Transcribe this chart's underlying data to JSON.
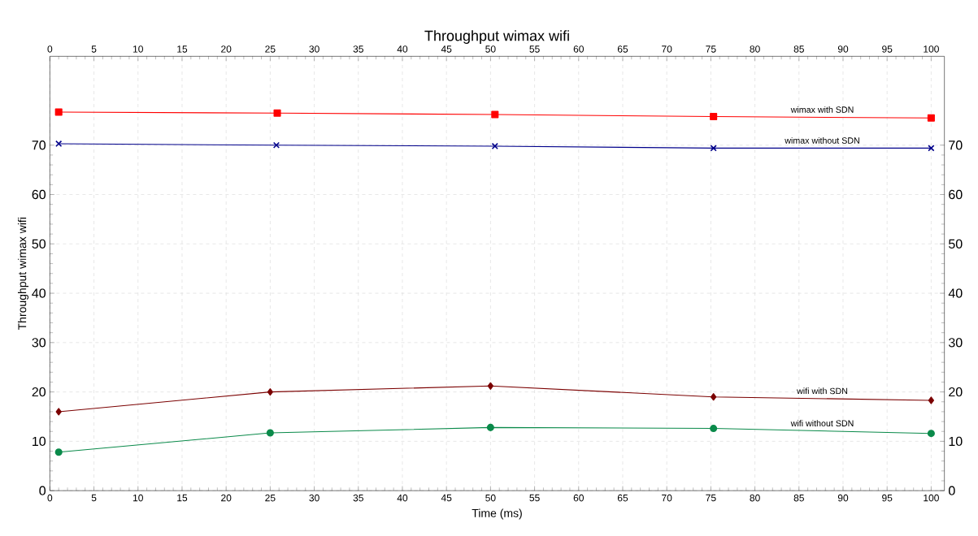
{
  "chart_data": {
    "type": "line",
    "title": "Throughput wimax wifi",
    "xlabel": "Time (ms)",
    "ylabel": "Throughput wimax wifi",
    "xlim": [
      0,
      101.5
    ],
    "xticks": [
      0,
      5,
      10,
      15,
      20,
      25,
      30,
      35,
      40,
      45,
      50,
      55,
      60,
      65,
      70,
      75,
      80,
      85,
      90,
      95,
      100
    ],
    "x2lim": [
      0,
      101.5
    ],
    "x2ticks": [
      0,
      5,
      10,
      15,
      20,
      25,
      30,
      35,
      40,
      45,
      50,
      55,
      60,
      65,
      70,
      75,
      80,
      85,
      90,
      95,
      100
    ],
    "ylim": [
      0,
      88
    ],
    "yticks": [
      0,
      10,
      20,
      30,
      40,
      50,
      60,
      70
    ],
    "y2lim": [
      0,
      88
    ],
    "y2ticks": [
      0,
      10,
      20,
      30,
      40,
      50,
      60,
      70
    ],
    "grid": true,
    "line_style": "solid",
    "series": [
      {
        "name": "wimax   with SDN",
        "color": "#ff0000",
        "marker": "square",
        "x": [
          1,
          25.8,
          50.5,
          75.3,
          100
        ],
        "values": [
          76.7,
          76.5,
          76.2,
          75.8,
          75.5
        ]
      },
      {
        "name": "wimax without SDN",
        "color": "#00008b",
        "marker": "cross",
        "x": [
          1,
          25.7,
          50.5,
          75.3,
          100
        ],
        "values": [
          70.3,
          70.0,
          69.8,
          69.4,
          69.4
        ]
      },
      {
        "name": "wifi with SDN",
        "color": "#7b0000",
        "marker": "diamond",
        "x": [
          1,
          25,
          50,
          75.3,
          100
        ],
        "values": [
          16.0,
          20.0,
          21.2,
          19.0,
          18.3
        ]
      },
      {
        "name": "wifi without SDN",
        "color": "#0a8a4a",
        "marker": "circle",
        "x": [
          1,
          25,
          50,
          75.3,
          100
        ],
        "values": [
          7.8,
          11.7,
          12.8,
          12.6,
          11.6
        ]
      }
    ]
  }
}
